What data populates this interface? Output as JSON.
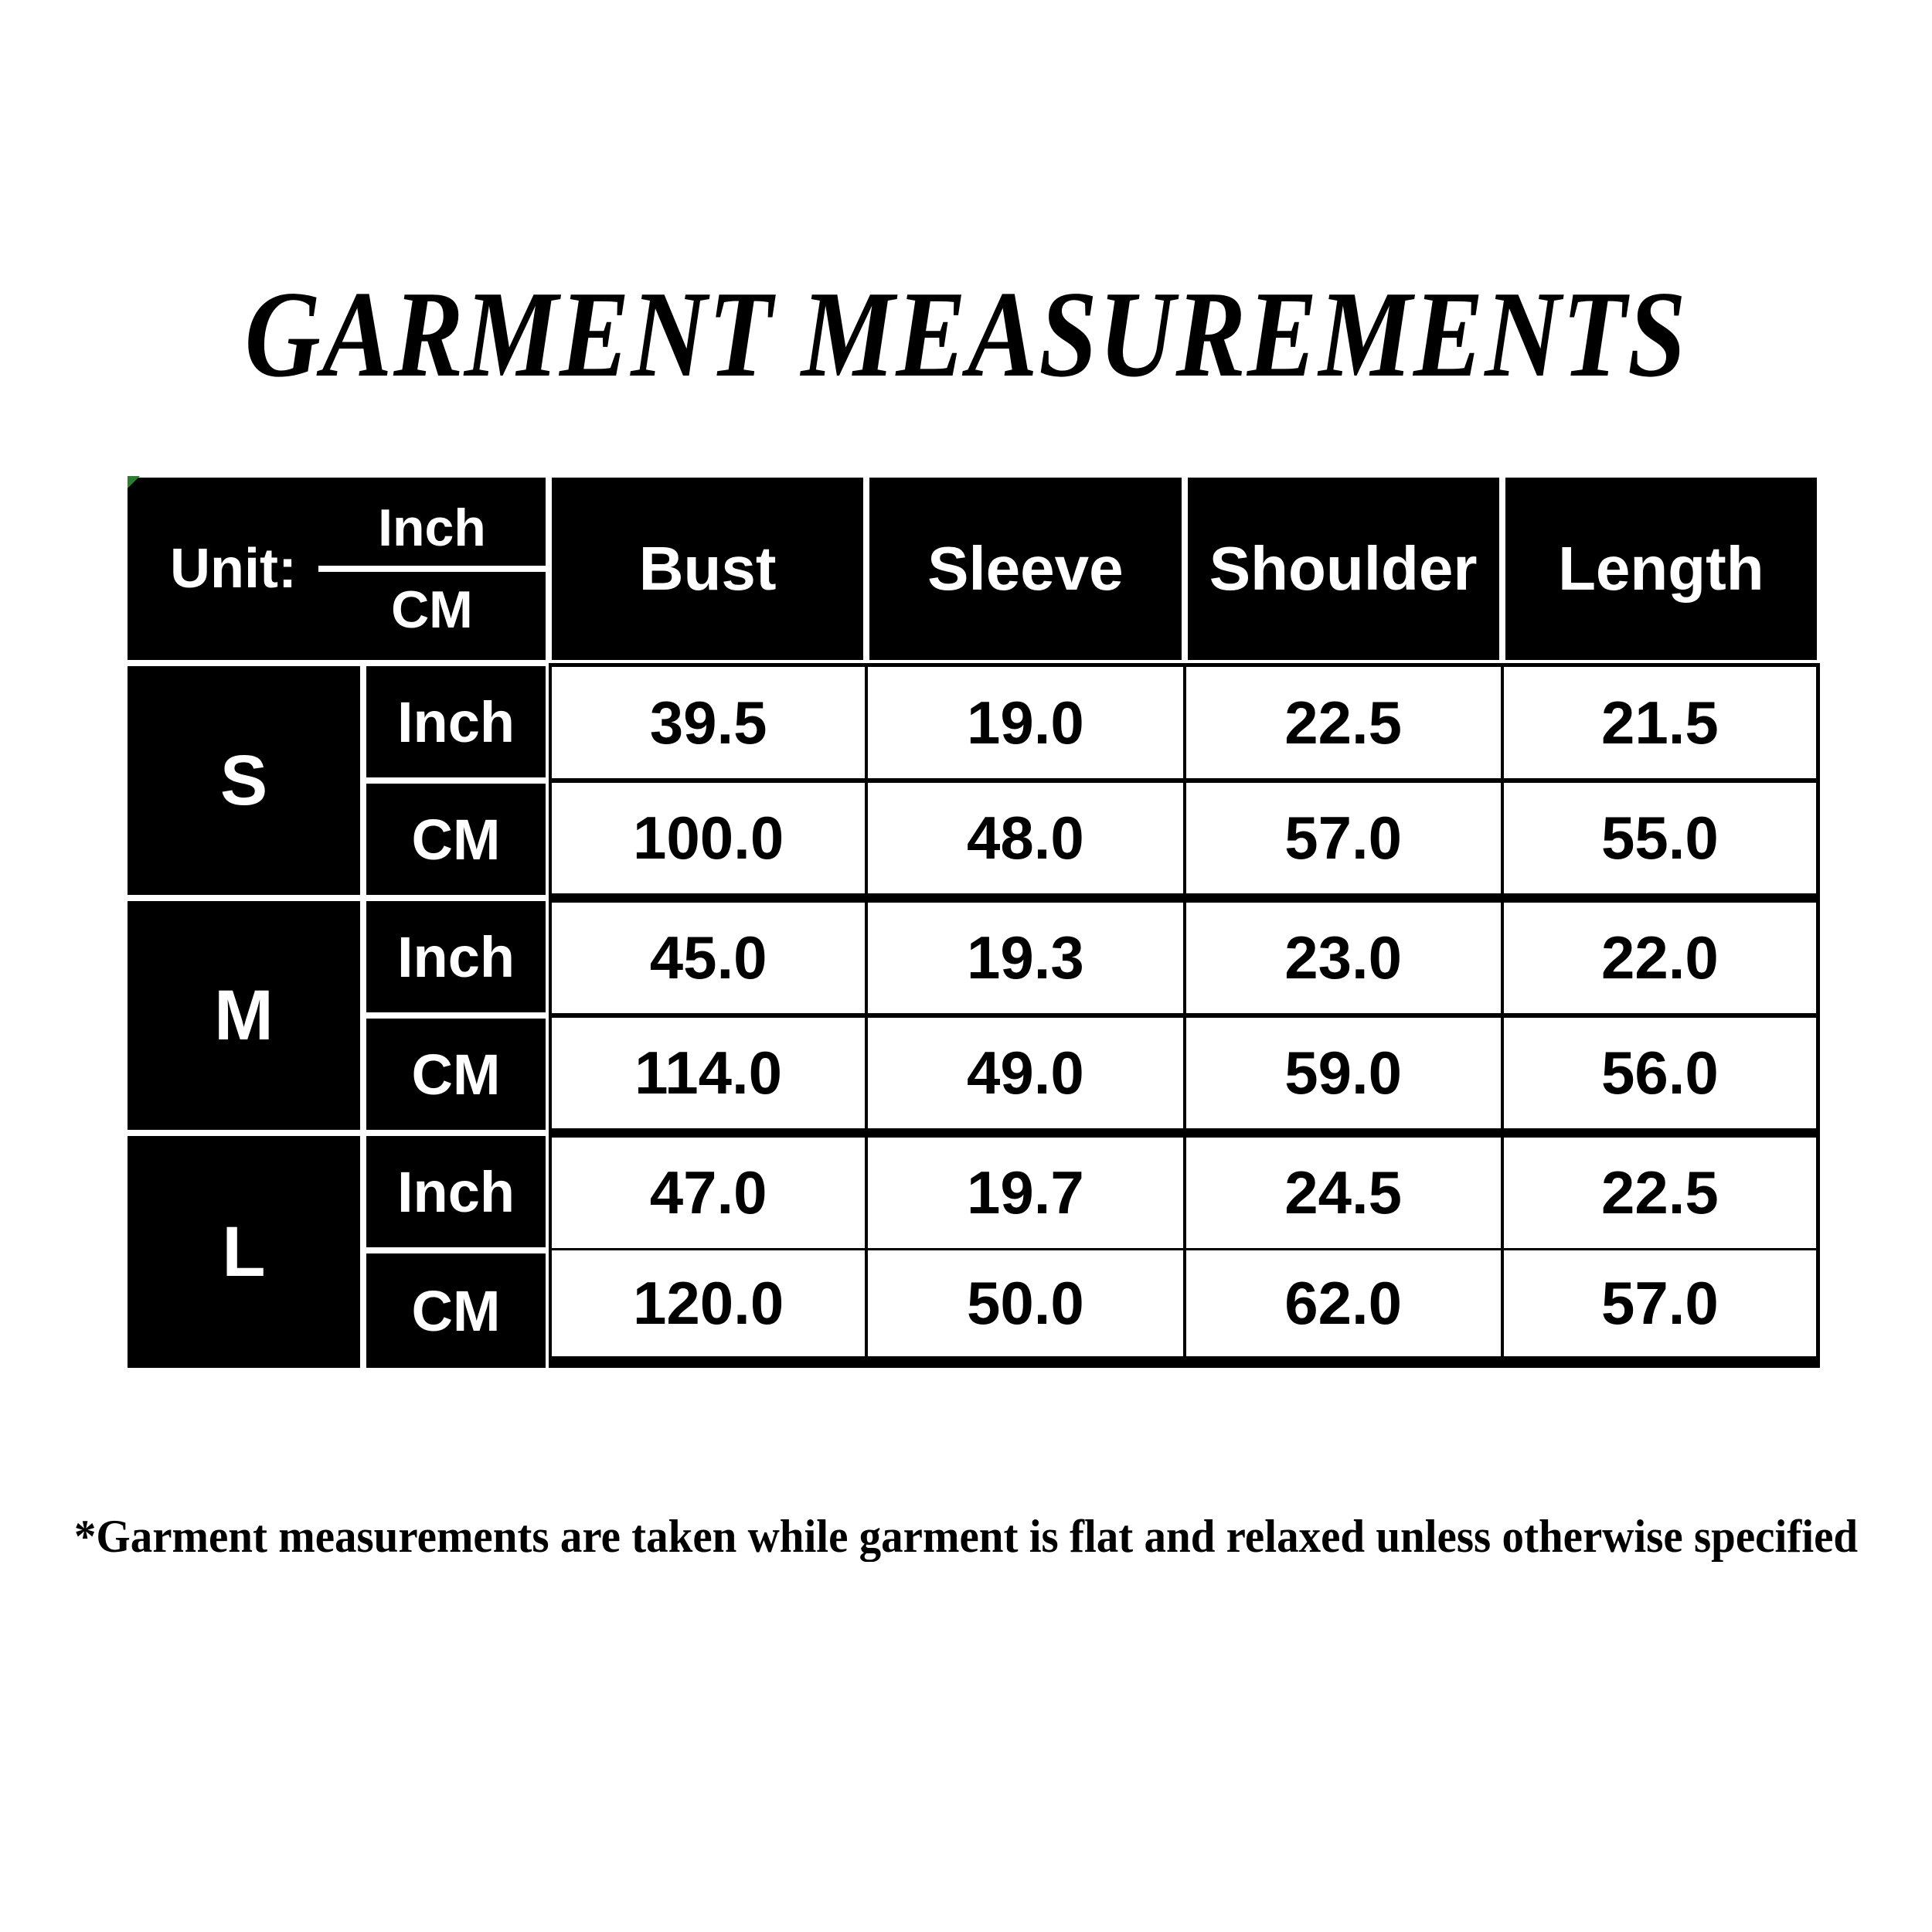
{
  "title": "GARMENT MEASUREMENTS",
  "footnote": "*Garment measurements are taken while garment is flat and relaxed unless otherwise specified",
  "colors": {
    "page_bg": "#ffffff",
    "cell_bg": "#000000",
    "cell_text": "#ffffff",
    "data_text": "#000000",
    "corner_marker_green": "#2e7d32"
  },
  "table": {
    "unit_label": "Unit:",
    "unit_inch": "Inch",
    "unit_cm": "CM",
    "columns": [
      "Bust",
      "Sleeve",
      "Shoulder",
      "Length"
    ],
    "row_unit_labels": {
      "inch": "Inch",
      "cm": "CM"
    },
    "sizes": [
      {
        "size": "S",
        "inch": [
          "39.5",
          "19.0",
          "22.5",
          "21.5"
        ],
        "cm": [
          "100.0",
          "48.0",
          "57.0",
          "55.0"
        ]
      },
      {
        "size": "M",
        "inch": [
          "45.0",
          "19.3",
          "23.0",
          "22.0"
        ],
        "cm": [
          "114.0",
          "49.0",
          "59.0",
          "56.0"
        ]
      },
      {
        "size": "L",
        "inch": [
          "47.0",
          "19.7",
          "24.5",
          "22.5"
        ],
        "cm": [
          "120.0",
          "50.0",
          "62.0",
          "57.0"
        ]
      }
    ]
  }
}
